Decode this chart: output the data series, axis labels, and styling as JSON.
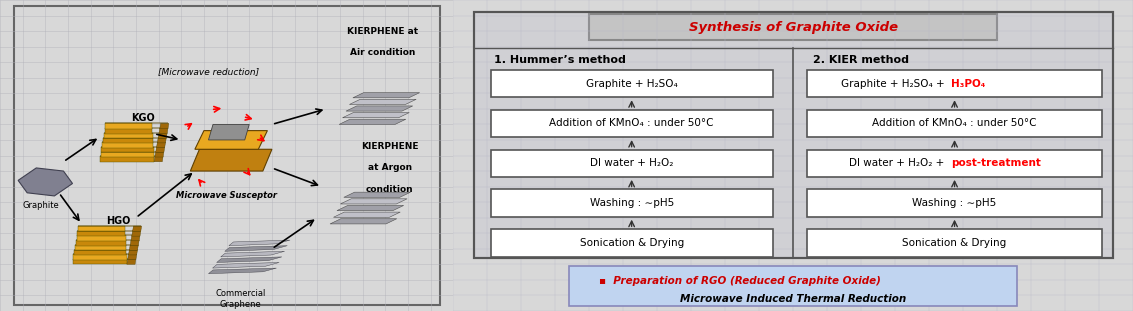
{
  "title": "Synthesis of Graphite Oxide",
  "title_color": "#cc0000",
  "col1_header": "1. Hummer’s method",
  "col2_header": "2. KIER method",
  "hummer_steps": [
    "Graphite + H₂SO₄",
    "Addition of KMnO₄ : under 50°C",
    "DI water + H₂O₂",
    "Washing : ∼pH5",
    "Sonication & Drying"
  ],
  "kier_steps_black": [
    "Graphite + H₂SO₄ + ",
    "Addition of KMnO₄ : under 50°C",
    "DI water + H₂O₂ + ",
    "Washing : ∼pH5",
    "Sonication & Drying"
  ],
  "kier_steps_red": [
    "H₃PO₄",
    "",
    "post-treatment",
    "",
    ""
  ],
  "footer_line1": "▪  Preparation of RGO (Reduced Graphite Oxide)",
  "footer_line2": "Microwave Induced Thermal Reduction",
  "left_labels": {
    "kgo": "KGO",
    "graphite": "Graphite",
    "hgo": "HGO",
    "microwave": "[Microwave reduction]",
    "susceptor": "Microwave Susceptor",
    "kierphene_air_1": "KIERPHENE at",
    "kierphene_air_2": "Air condition",
    "kierphene_argon_1": "KIERPHENE",
    "kierphene_argon_2": "at Argon",
    "kierphene_argon_3": "condition",
    "commercial_1": "Commercial",
    "commercial_2": "Graphene"
  }
}
